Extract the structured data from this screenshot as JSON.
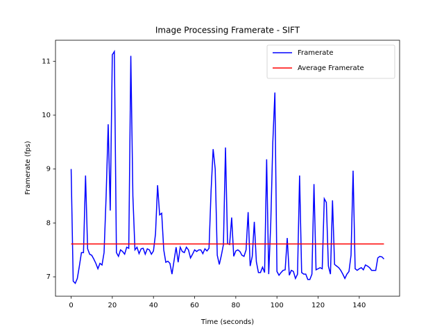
{
  "chart_data": {
    "type": "line",
    "title": "Image Processing Framerate - SIFT",
    "x_label": "Time (seconds)",
    "y_label": "Framerate (fps)",
    "xlim": [
      -7.6,
      159.6
    ],
    "ylim": [
      6.64,
      11.39
    ],
    "xticks": [
      0,
      20,
      40,
      60,
      80,
      100,
      120,
      140
    ],
    "yticks": [
      7,
      8,
      9,
      10,
      11
    ],
    "legend": "upper right",
    "series": [
      {
        "name": "Framerate",
        "color": "#0000ff",
        "x": [
          0,
          1,
          2,
          3,
          4,
          5,
          6,
          7,
          8,
          9,
          10,
          11,
          12,
          13,
          14,
          15,
          16,
          17,
          18,
          19,
          20,
          21,
          22,
          23,
          24,
          25,
          26,
          27,
          28,
          29,
          30,
          31,
          32,
          33,
          34,
          35,
          36,
          37,
          38,
          39,
          40,
          41,
          42,
          43,
          44,
          45,
          46,
          47,
          48,
          49,
          50,
          51,
          52,
          53,
          54,
          55,
          56,
          57,
          58,
          59,
          60,
          61,
          62,
          63,
          64,
          65,
          66,
          67,
          68,
          69,
          70,
          71,
          72,
          73,
          74,
          75,
          76,
          77,
          78,
          79,
          80,
          81,
          82,
          83,
          84,
          85,
          86,
          87,
          88,
          89,
          90,
          91,
          92,
          93,
          94,
          95,
          96,
          97,
          98,
          99,
          100,
          101,
          102,
          103,
          104,
          105,
          106,
          107,
          108,
          109,
          110,
          111,
          112,
          113,
          114,
          115,
          116,
          117,
          118,
          119,
          120,
          121,
          122,
          123,
          124,
          125,
          126,
          127,
          128,
          129,
          130,
          131,
          132,
          133,
          134,
          135,
          136,
          137,
          138,
          139,
          140,
          141,
          142,
          143,
          144,
          145,
          146,
          147,
          148,
          149,
          150,
          151,
          152
        ],
        "values": [
          9.0,
          6.92,
          6.88,
          6.97,
          7.2,
          7.45,
          7.45,
          8.88,
          7.52,
          7.42,
          7.4,
          7.33,
          7.25,
          7.15,
          7.25,
          7.22,
          7.45,
          8.5,
          9.83,
          8.23,
          11.12,
          11.18,
          7.45,
          7.38,
          7.5,
          7.47,
          7.42,
          7.55,
          7.53,
          11.1,
          8.5,
          7.5,
          7.55,
          7.43,
          7.52,
          7.53,
          7.42,
          7.52,
          7.5,
          7.42,
          7.48,
          7.8,
          8.7,
          8.15,
          8.18,
          7.5,
          7.27,
          7.29,
          7.25,
          7.05,
          7.3,
          7.55,
          7.27,
          7.55,
          7.47,
          7.45,
          7.55,
          7.5,
          7.35,
          7.42,
          7.5,
          7.47,
          7.5,
          7.5,
          7.43,
          7.52,
          7.48,
          7.53,
          8.6,
          9.37,
          9.0,
          7.4,
          7.23,
          7.4,
          7.6,
          9.4,
          7.62,
          7.6,
          8.1,
          7.38,
          7.48,
          7.5,
          7.47,
          7.4,
          7.38,
          7.5,
          8.2,
          7.2,
          7.38,
          8.02,
          7.28,
          7.08,
          7.08,
          7.18,
          7.08,
          9.18,
          7.05,
          8.0,
          9.5,
          10.42,
          7.1,
          7.03,
          7.08,
          7.12,
          7.13,
          7.72,
          7.03,
          7.12,
          7.1,
          6.97,
          7.05,
          8.88,
          7.08,
          7.05,
          7.05,
          6.95,
          6.95,
          7.05,
          8.72,
          7.13,
          7.15,
          7.17,
          7.15,
          8.45,
          8.38,
          7.2,
          7.05,
          8.42,
          7.23,
          7.2,
          7.17,
          7.12,
          7.05,
          6.97,
          7.05,
          7.1,
          7.4,
          8.97,
          7.15,
          7.12,
          7.15,
          7.17,
          7.13,
          7.22,
          7.2,
          7.17,
          7.12,
          7.12,
          7.12,
          7.35,
          7.38,
          7.37,
          7.33
        ]
      },
      {
        "name": "Average Framerate",
        "color": "#ff0000",
        "x": [
          0,
          152
        ],
        "values": [
          7.61,
          7.61
        ]
      }
    ]
  }
}
